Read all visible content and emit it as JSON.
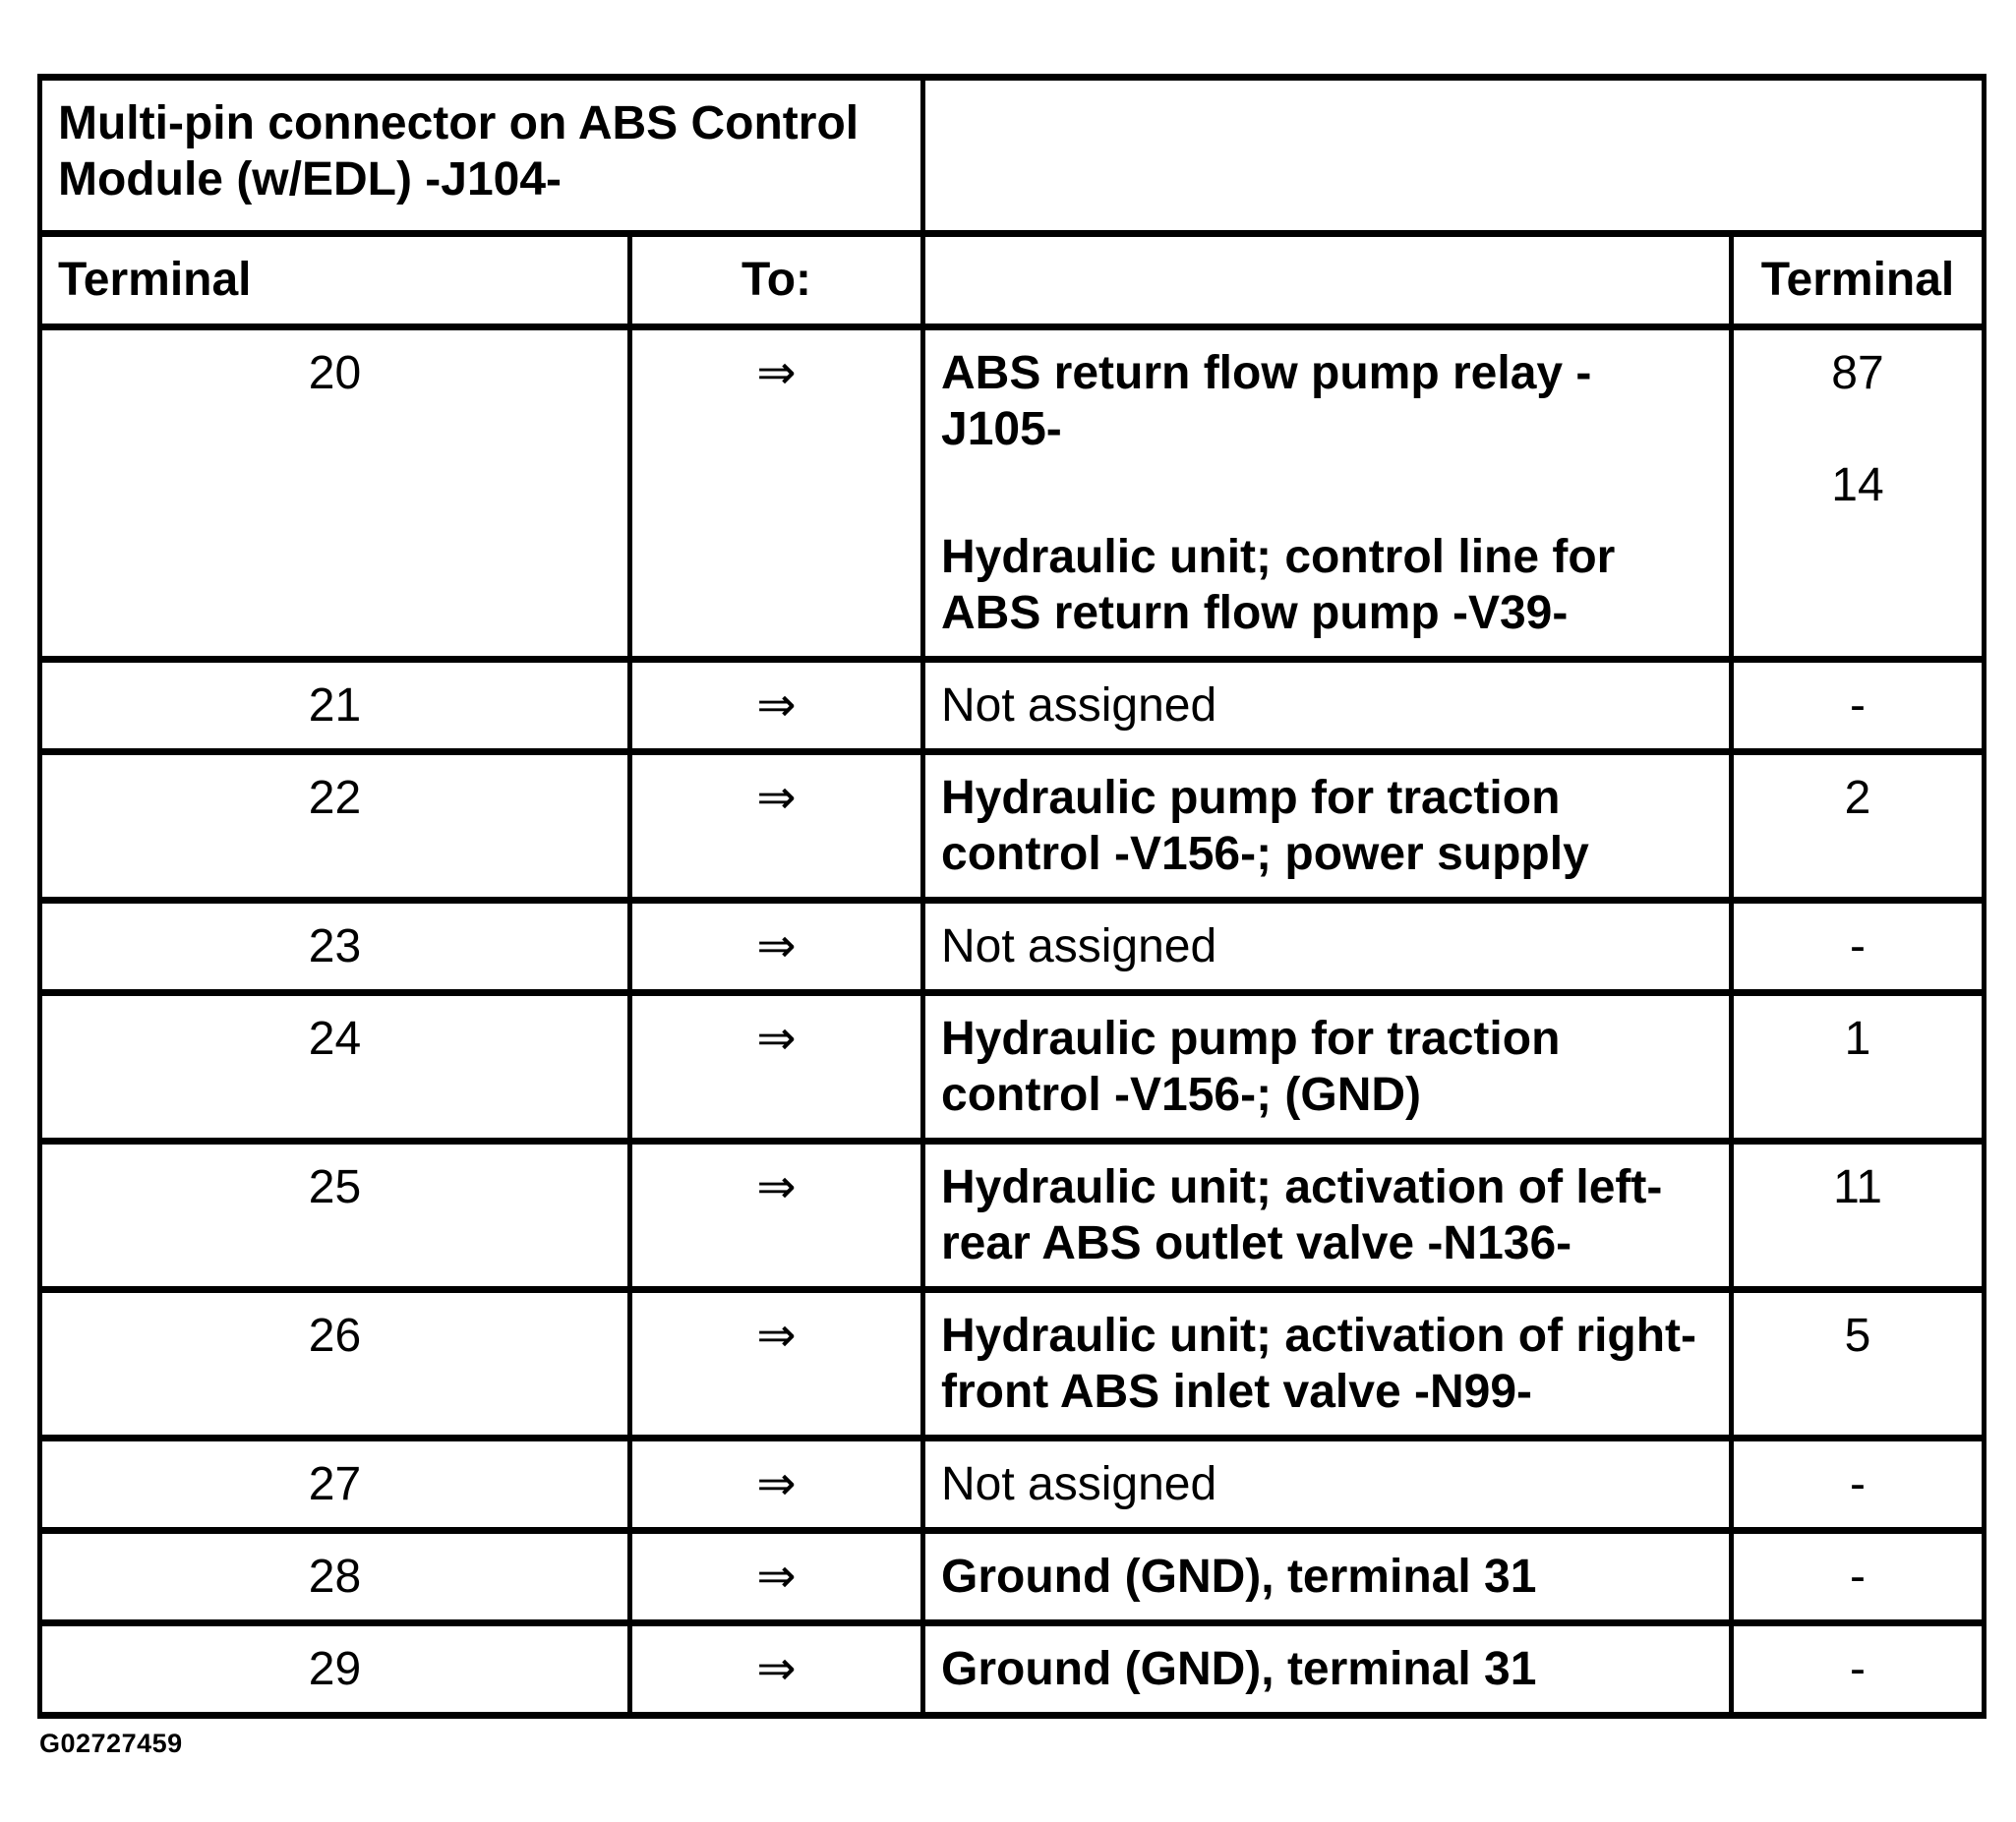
{
  "page": {
    "paper_color": "#ffffff",
    "ink_color": "#000000",
    "figure_code": "G02727459"
  },
  "table": {
    "title": "Multi-pin connector on ABS Control\nModule (w/EDL) -J104-",
    "headers": {
      "terminal_left": "Terminal",
      "to": "To:",
      "description": "",
      "terminal_right": "Terminal"
    },
    "rows": [
      {
        "terminal": "20",
        "arrow": "⇒",
        "description": [
          "ABS return flow pump relay -\nJ105-",
          "Hydraulic unit; control line for\nABS return flow pump -V39-"
        ],
        "description_weight": "bold",
        "to_terminals": [
          "87",
          "14"
        ]
      },
      {
        "terminal": "21",
        "arrow": "⇒",
        "description": [
          "Not assigned"
        ],
        "description_weight": "regular",
        "to_terminals": [
          "-"
        ]
      },
      {
        "terminal": "22",
        "arrow": "⇒",
        "description": [
          "Hydraulic pump for traction\ncontrol -V156-; power supply"
        ],
        "description_weight": "bold",
        "to_terminals": [
          "2"
        ]
      },
      {
        "terminal": "23",
        "arrow": "⇒",
        "description": [
          "Not assigned"
        ],
        "description_weight": "regular",
        "to_terminals": [
          "-"
        ]
      },
      {
        "terminal": "24",
        "arrow": "⇒",
        "description": [
          "Hydraulic pump for traction\ncontrol -V156-; (GND)"
        ],
        "description_weight": "bold",
        "to_terminals": [
          "1"
        ]
      },
      {
        "terminal": "25",
        "arrow": "⇒",
        "description": [
          "Hydraulic unit; activation of left-\nrear ABS outlet valve -N136-"
        ],
        "description_weight": "bold",
        "to_terminals": [
          "11"
        ]
      },
      {
        "terminal": "26",
        "arrow": "⇒",
        "description": [
          "Hydraulic unit; activation of right-\nfront ABS inlet valve -N99-"
        ],
        "description_weight": "bold",
        "to_terminals": [
          "5"
        ]
      },
      {
        "terminal": "27",
        "arrow": "⇒",
        "description": [
          "Not assigned"
        ],
        "description_weight": "regular",
        "to_terminals": [
          "-"
        ]
      },
      {
        "terminal": "28",
        "arrow": "⇒",
        "description": [
          "Ground (GND), terminal 31"
        ],
        "description_weight": "bold",
        "to_terminals": [
          "-"
        ]
      },
      {
        "terminal": "29",
        "arrow": "⇒",
        "description": [
          "Ground (GND), terminal 31"
        ],
        "description_weight": "bold",
        "to_terminals": [
          "-"
        ]
      }
    ]
  }
}
